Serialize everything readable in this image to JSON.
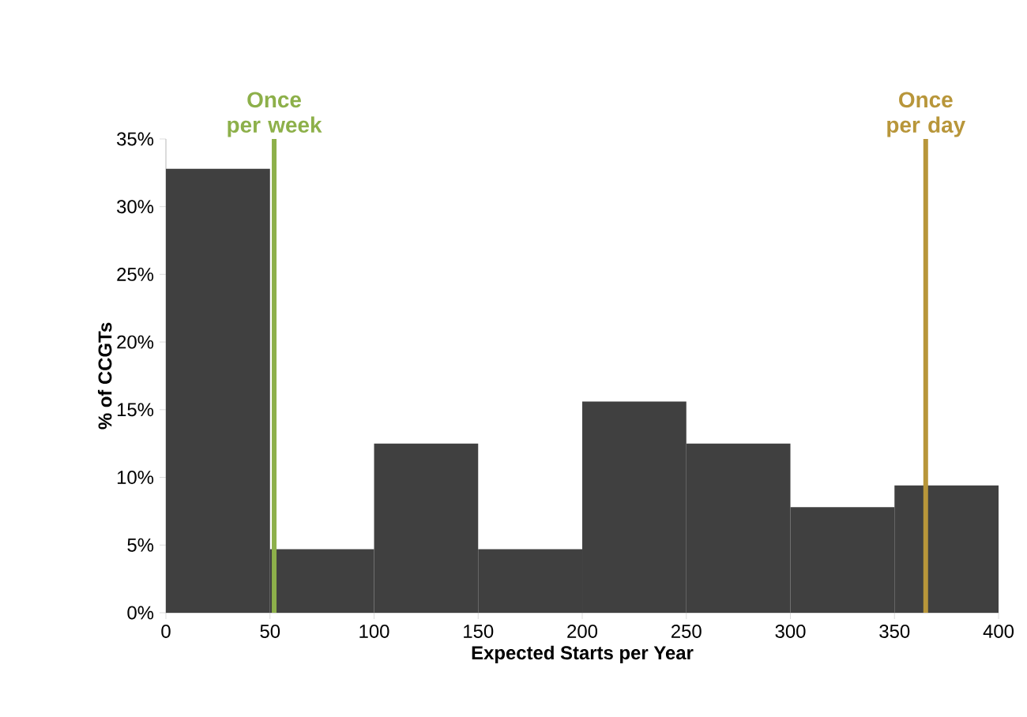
{
  "chart_data": {
    "type": "histogram",
    "xlabel": "Expected Starts per Year",
    "ylabel": "% of CCGTs",
    "bins": [
      0,
      50,
      100,
      150,
      200,
      250,
      300,
      350,
      400
    ],
    "values": [
      32.8,
      4.7,
      12.5,
      4.7,
      15.6,
      12.5,
      7.8,
      9.4
    ],
    "color": "#404040",
    "xlim": [
      0,
      400
    ],
    "xticks": [
      0,
      50,
      100,
      150,
      200,
      250,
      300,
      350,
      400
    ],
    "ylim": [
      0,
      35
    ],
    "yticks": [
      {
        "value": 0,
        "label": "0%"
      },
      {
        "value": 5,
        "label": "5%"
      },
      {
        "value": 10,
        "label": "10%"
      },
      {
        "value": 15,
        "label": "15%"
      },
      {
        "value": 20,
        "label": "20%"
      },
      {
        "value": 25,
        "label": "25%"
      },
      {
        "value": 30,
        "label": "30%"
      },
      {
        "value": 35,
        "label": "35%"
      }
    ],
    "ref_lines": [
      {
        "axis": "x",
        "value": 52,
        "label": "Once per week",
        "color": "#8db04a"
      },
      {
        "axis": "x",
        "value": 365,
        "label": "Once per day",
        "color": "#b8963a"
      }
    ]
  }
}
